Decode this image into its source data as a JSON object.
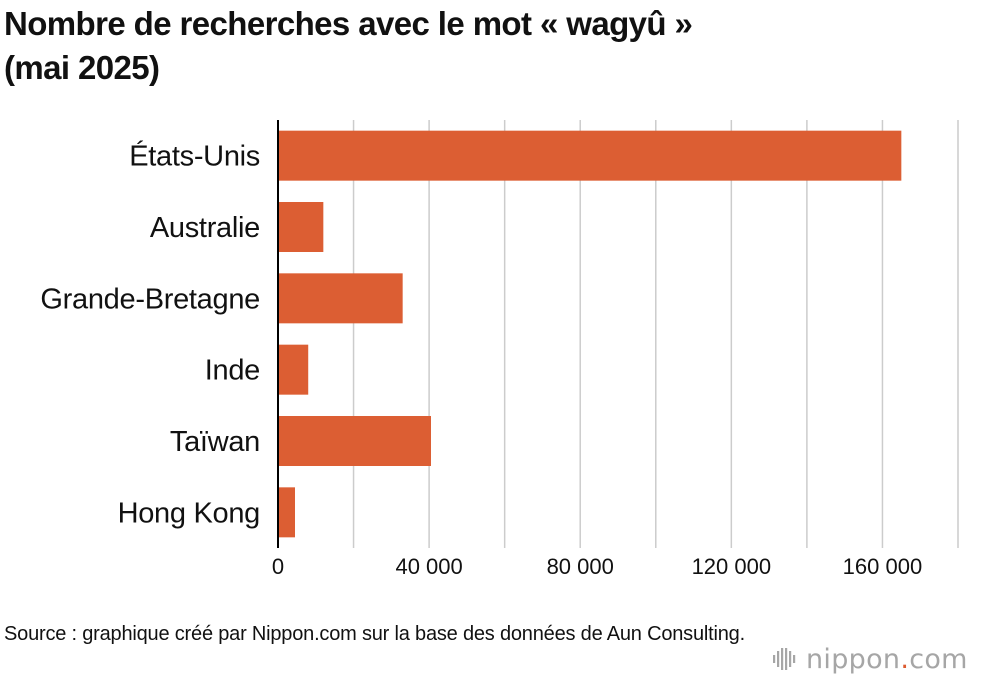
{
  "title_line1": "Nombre de recherches avec le mot « wagyû »",
  "title_line2": "(mai 2025)",
  "source": "Source : graphique créé par Nippon.com sur la base des données de Aun Consulting.",
  "logo": {
    "name_part1": "nippon",
    "dot": ".",
    "name_part2": "com",
    "icon": "sound-wave-icon"
  },
  "colors": {
    "bar": "#dc5e33",
    "grid": "#cccccc",
    "axis": "#000000",
    "logo_gray": "#a6a6a6",
    "logo_accent": "#dc5b31"
  },
  "chart_data": {
    "type": "bar",
    "orientation": "horizontal",
    "title": "Nombre de recherches avec le mot « wagyû » (mai 2025)",
    "categories": [
      "États-Unis",
      "Australie",
      "Grande-Bretagne",
      "Inde",
      "Taïwan",
      "Hong Kong"
    ],
    "values": [
      165000,
      12000,
      33000,
      8000,
      40500,
      4500
    ],
    "xlim": [
      0,
      180000
    ],
    "xticks": [
      0,
      40000,
      80000,
      120000,
      160000
    ],
    "xtick_labels": [
      "0",
      "40 000",
      "80 000",
      "120 000",
      "160 000"
    ],
    "grid": true,
    "legend": "none"
  }
}
